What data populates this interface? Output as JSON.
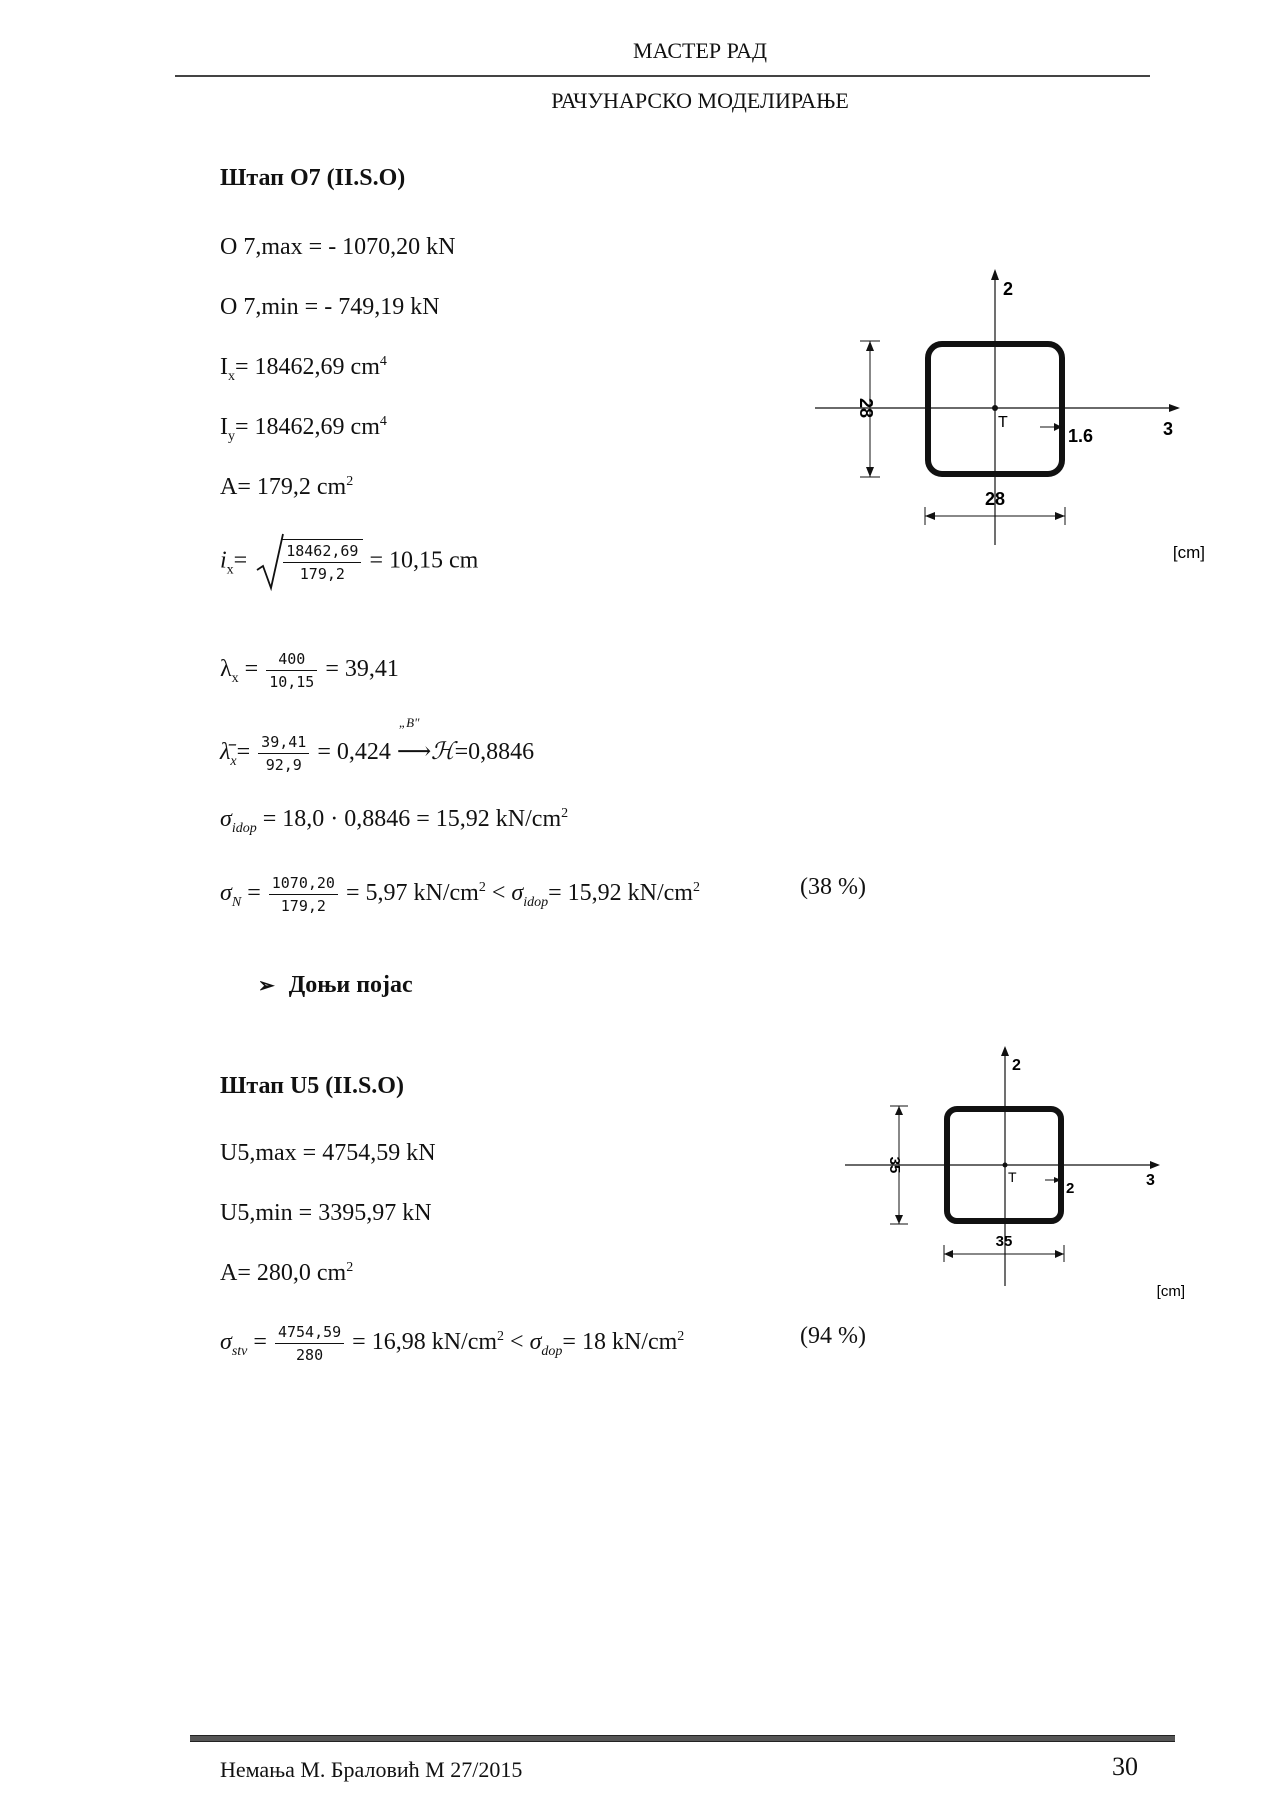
{
  "header": {
    "title": "МАСТЕР РАД",
    "subtitle": "РАЧУНАРСКО МОДЕЛИРАЊЕ"
  },
  "section_o7": {
    "heading": "Штап О7   (II.S.O)",
    "o7_max": "О 7,max = - 1070,20 kN",
    "o7_min": "О 7,min = - 749,19 kN",
    "ix_label": "I",
    "ix_sub": "x",
    "ix_value": "= 18462,69 cm",
    "iy_label": "I",
    "iy_sub": "y",
    "iy_value": "= 18462,69  cm",
    "exp4": "4",
    "exp2": "2",
    "area": "A= 179,2 cm",
    "radius_label": "i",
    "radius_sub": "x",
    "radius_eq": "=",
    "radius_num": "18462,69",
    "radius_den": "179,2",
    "radius_result": "= 10,15 cm",
    "lambda_label": "λ",
    "lambda_sub": "x",
    "lambda_eq": " =",
    "lambda_num": "400",
    "lambda_den": "10,15",
    "lambda_result": "= 39,41",
    "lbar_label": "λ̄",
    "lbar_sub": "x",
    "lbar_eq": "=",
    "lbar_num": "39,41",
    "lbar_den": "92,9",
    "lbar_result": "= 0,424",
    "curve_label": "„B\"",
    "arrow": "⟶",
    "kappa": "ℋ",
    "kappa_value": "=0,8846",
    "sigma": "σ",
    "sigma_idop_sub": "idop",
    "sigma_idop_value": " = 18,0 · 0,8846 = 15,92 kN/cm",
    "sigma_n_sub": "N",
    "sigma_n_eq": " =",
    "sigma_n_num": "1070,20",
    "sigma_n_den": "179,2",
    "sigma_n_result": "= 5,97 kN/cm",
    "lt": " < ",
    "sigma_n_idop_value": "= 15,92 kN/cm",
    "sigma_n_percent": "(38 %)"
  },
  "bullet": {
    "marker": "➢",
    "text": "Доњи појас"
  },
  "section_u5": {
    "heading": "Штап U5   (II.S.O)",
    "u5_max": "U5,max = 4754,59 kN",
    "u5_min": "U5,min = 3395,97 kN",
    "area": "A= 280,0 cm",
    "sigma_stv_sub": "stv",
    "sigma_stv_eq": " =",
    "sigma_stv_num": "4754,59",
    "sigma_stv_den": "280",
    "sigma_stv_result": "= 16,98 kN/cm",
    "sigma_dop_sub": "dop",
    "sigma_dop_value": "= 18 kN/cm",
    "percent": "(94 %)"
  },
  "diagram1": {
    "axis_vertical": "2",
    "axis_horizontal": "3",
    "centroid": "T",
    "height_dim": "28",
    "width_dim": "28",
    "thickness_dim": "1.6",
    "unit": "[cm]"
  },
  "diagram2": {
    "axis_vertical": "2",
    "axis_horizontal": "3",
    "centroid": "T",
    "height_dim": "35",
    "width_dim": "35",
    "thickness_dim": "2",
    "unit": "[cm]"
  },
  "footer": {
    "author": "Немања М. Браловић М 27/2015",
    "page_number": "30"
  }
}
